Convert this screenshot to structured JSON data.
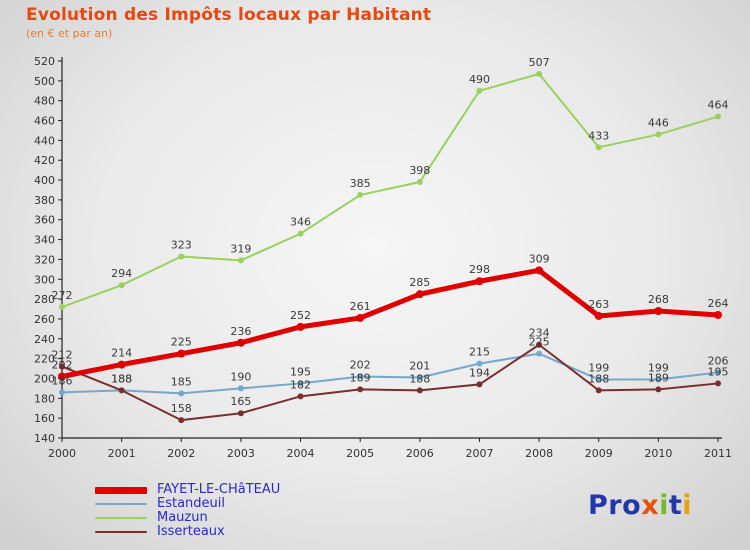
{
  "header": {
    "title": "Evolution des Impôts locaux par Habitant",
    "subtitle": "(en € et par an)"
  },
  "chart_data": {
    "type": "line",
    "x": [
      2000,
      2001,
      2002,
      2003,
      2004,
      2005,
      2006,
      2007,
      2008,
      2009,
      2010,
      2011
    ],
    "ylim": [
      140,
      520
    ],
    "ytick_step": 20,
    "grid": false,
    "legend_position": "bottom-left",
    "axis_color": "#222222",
    "label_color": "#3a3a3a",
    "series": [
      {
        "name": "FAYET-LE-CHâTEAU",
        "color": "#e00000",
        "width": 5,
        "values": [
          202,
          214,
          225,
          236,
          252,
          261,
          285,
          298,
          309,
          263,
          268,
          264
        ]
      },
      {
        "name": "Estandeuil",
        "color": "#74a9cb",
        "width": 2,
        "values": [
          186,
          188,
          185,
          190,
          195,
          202,
          201,
          215,
          225,
          199,
          199,
          206
        ]
      },
      {
        "name": "Mauzun",
        "color": "#9bd05f",
        "width": 2,
        "values": [
          272,
          294,
          323,
          319,
          346,
          385,
          398,
          490,
          507,
          433,
          446,
          464
        ]
      },
      {
        "name": "Isserteaux",
        "color": "#7a2e2e",
        "width": 2,
        "values": [
          212,
          188,
          158,
          165,
          182,
          189,
          188,
          194,
          234,
          188,
          189,
          195
        ]
      }
    ]
  },
  "logo": {
    "text": "Proxiti",
    "letters": [
      {
        "ch": "P",
        "color": "#2238a8"
      },
      {
        "ch": "r",
        "color": "#2238a8"
      },
      {
        "ch": "o",
        "color": "#2238a8"
      },
      {
        "ch": "x",
        "color": "#e8500c"
      },
      {
        "ch": "i",
        "color": "#78b82e"
      },
      {
        "ch": "t",
        "color": "#2238a8"
      },
      {
        "ch": "i",
        "color": "#e8a00c"
      }
    ]
  }
}
